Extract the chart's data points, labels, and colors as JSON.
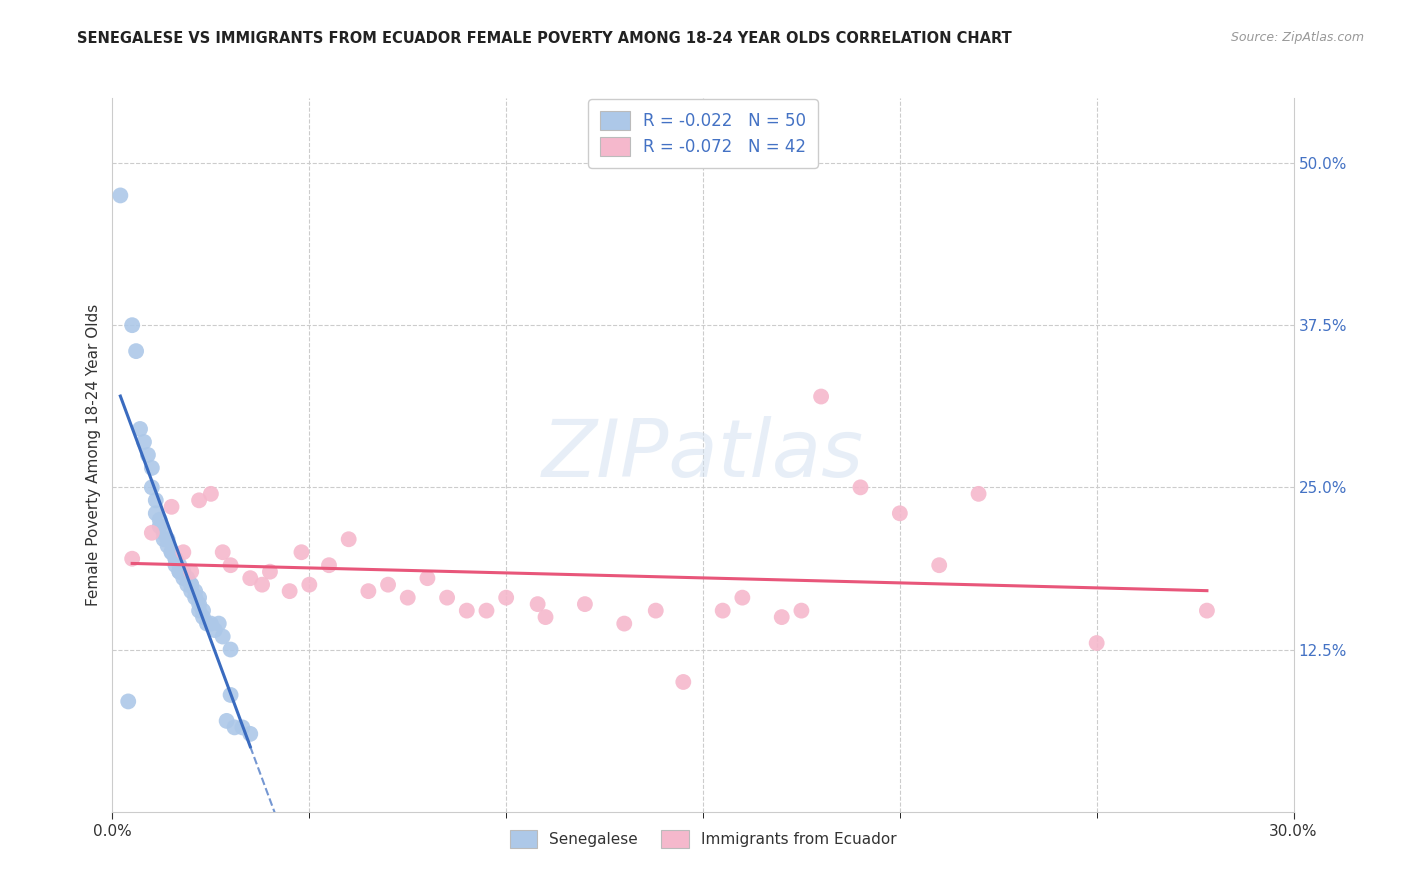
{
  "title": "SENEGALESE VS IMMIGRANTS FROM ECUADOR FEMALE POVERTY AMONG 18-24 YEAR OLDS CORRELATION CHART",
  "source": "Source: ZipAtlas.com",
  "ylabel": "Female Poverty Among 18-24 Year Olds",
  "xlim": [
    0.0,
    0.3
  ],
  "ylim": [
    0.0,
    0.55
  ],
  "yticks": [
    0.125,
    0.25,
    0.375,
    0.5
  ],
  "xticks_minor": [
    0.05,
    0.1,
    0.15,
    0.2,
    0.25
  ],
  "legend_labels": [
    "Senegalese",
    "Immigrants from Ecuador"
  ],
  "R_senegalese": -0.022,
  "N_senegalese": 50,
  "R_ecuador": -0.072,
  "N_ecuador": 42,
  "senegalese_color": "#adc8e8",
  "ecuador_color": "#f5b8cc",
  "trendline_senegalese_color": "#3a6bbf",
  "trendline_ecuador_color": "#e8567a",
  "watermark_color": "#d0dff0",
  "senegalese_x": [
    0.002,
    0.004,
    0.005,
    0.006,
    0.007,
    0.008,
    0.009,
    0.01,
    0.01,
    0.011,
    0.011,
    0.012,
    0.012,
    0.013,
    0.013,
    0.014,
    0.014,
    0.015,
    0.015,
    0.016,
    0.016,
    0.016,
    0.017,
    0.017,
    0.017,
    0.018,
    0.018,
    0.019,
    0.019,
    0.02,
    0.02,
    0.02,
    0.021,
    0.021,
    0.022,
    0.022,
    0.022,
    0.023,
    0.023,
    0.024,
    0.025,
    0.026,
    0.027,
    0.028,
    0.029,
    0.03,
    0.03,
    0.031,
    0.033,
    0.035
  ],
  "senegalese_y": [
    0.475,
    0.085,
    0.375,
    0.355,
    0.295,
    0.285,
    0.275,
    0.265,
    0.25,
    0.24,
    0.23,
    0.225,
    0.22,
    0.215,
    0.21,
    0.21,
    0.205,
    0.2,
    0.2,
    0.195,
    0.195,
    0.19,
    0.19,
    0.185,
    0.185,
    0.185,
    0.18,
    0.18,
    0.175,
    0.175,
    0.175,
    0.17,
    0.17,
    0.165,
    0.165,
    0.16,
    0.155,
    0.155,
    0.15,
    0.145,
    0.145,
    0.14,
    0.145,
    0.135,
    0.07,
    0.09,
    0.125,
    0.065,
    0.065,
    0.06
  ],
  "ecuador_x": [
    0.005,
    0.01,
    0.015,
    0.018,
    0.02,
    0.022,
    0.025,
    0.028,
    0.03,
    0.035,
    0.038,
    0.04,
    0.045,
    0.048,
    0.05,
    0.055,
    0.06,
    0.065,
    0.07,
    0.075,
    0.08,
    0.085,
    0.09,
    0.095,
    0.1,
    0.108,
    0.11,
    0.12,
    0.13,
    0.138,
    0.145,
    0.155,
    0.16,
    0.17,
    0.175,
    0.18,
    0.19,
    0.2,
    0.21,
    0.22,
    0.25,
    0.278
  ],
  "ecuador_y": [
    0.195,
    0.215,
    0.235,
    0.2,
    0.185,
    0.24,
    0.245,
    0.2,
    0.19,
    0.18,
    0.175,
    0.185,
    0.17,
    0.2,
    0.175,
    0.19,
    0.21,
    0.17,
    0.175,
    0.165,
    0.18,
    0.165,
    0.155,
    0.155,
    0.165,
    0.16,
    0.15,
    0.16,
    0.145,
    0.155,
    0.1,
    0.155,
    0.165,
    0.15,
    0.155,
    0.32,
    0.25,
    0.23,
    0.19,
    0.245,
    0.13,
    0.155
  ]
}
